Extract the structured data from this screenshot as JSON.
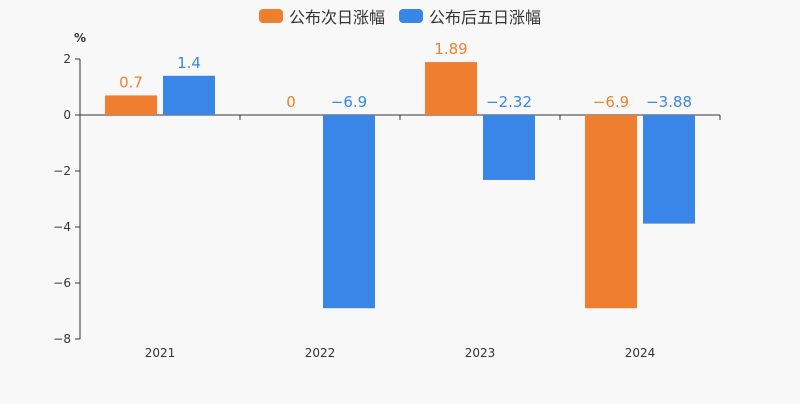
{
  "chart_data": {
    "type": "bar",
    "categories": [
      "2021",
      "2022",
      "2023",
      "2024"
    ],
    "series": [
      {
        "name": "公布次日涨幅",
        "color": "#ef7f2f",
        "values": [
          0.7,
          0,
          1.89,
          -6.9
        ],
        "labels": [
          "0.7",
          "0",
          "1.89",
          "−6.9"
        ]
      },
      {
        "name": "公布后五日涨幅",
        "color": "#3a86e8",
        "values": [
          1.4,
          -6.9,
          -2.32,
          -3.88
        ],
        "labels": [
          "1.4",
          "−6.9",
          "−2.32",
          "−3.88"
        ]
      }
    ],
    "ylabel": "%",
    "ylim": [
      -8,
      2
    ],
    "yticks": [
      2,
      0,
      -2,
      -4,
      -6,
      -8
    ],
    "ytick_labels": [
      "2",
      "0",
      "−2",
      "−4",
      "−6",
      "−8"
    ],
    "legend_position": "top-center",
    "grid": false
  }
}
